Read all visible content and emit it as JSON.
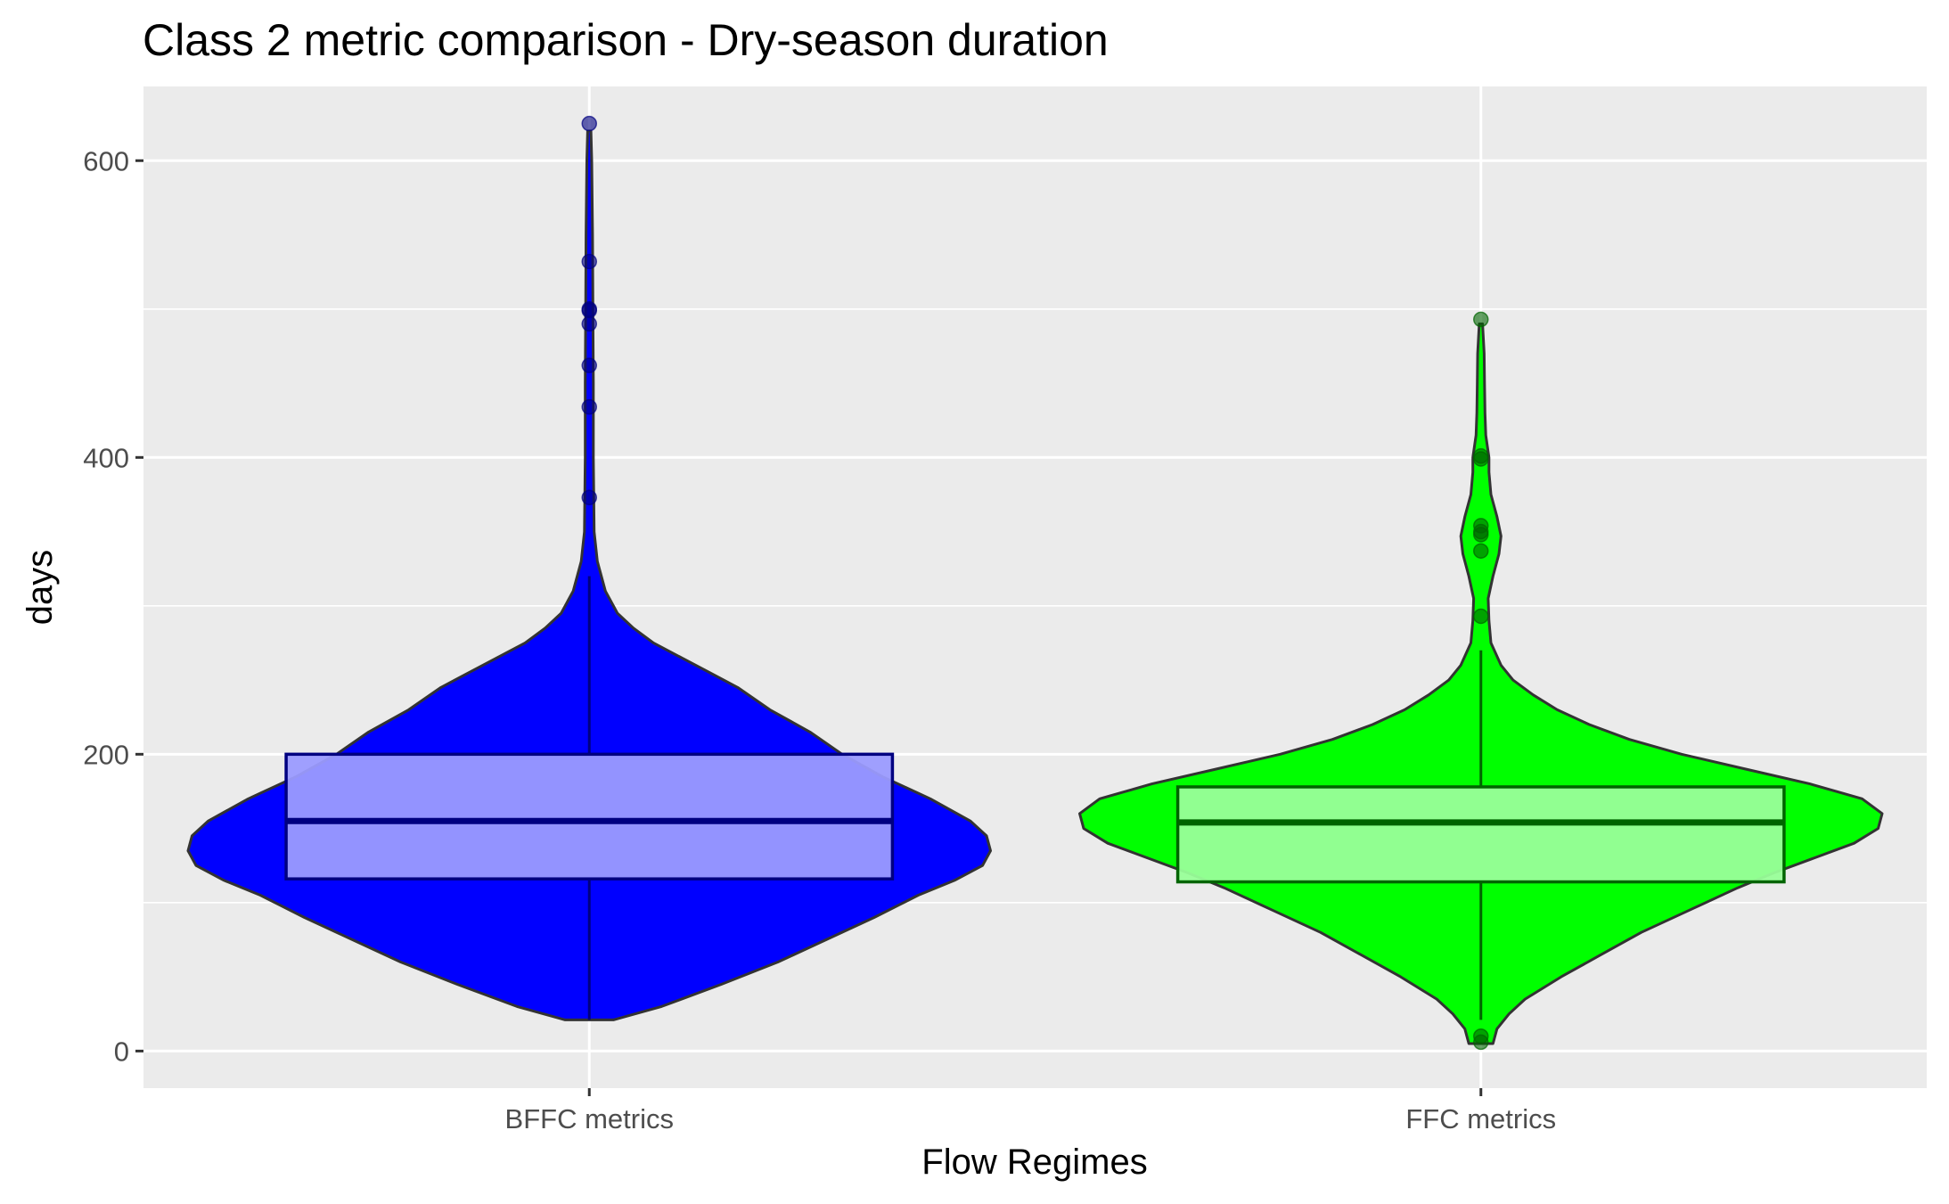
{
  "chart_data": {
    "type": "violin",
    "title": "Class 2 metric comparison - Dry-season duration",
    "xlabel": "Flow Regimes",
    "ylabel": "days",
    "categories": [
      "BFFC metrics",
      "FFC metrics"
    ],
    "ylim": [
      -25,
      650
    ],
    "yticks": [
      0,
      200,
      400,
      600
    ],
    "grid": true,
    "legend": "none",
    "series": [
      {
        "category": "BFFC metrics",
        "fill": "#0000ff",
        "box_fill": "#9b9bff",
        "box_edge": "#000080",
        "box": {
          "q1": 116,
          "median": 155,
          "q3": 200,
          "whisker_low": 21,
          "whisker_high": 320
        },
        "violin_range": [
          21,
          620
        ],
        "violin_density": [
          [
            21,
            0.06
          ],
          [
            30,
            0.18
          ],
          [
            45,
            0.33
          ],
          [
            60,
            0.47
          ],
          [
            75,
            0.59
          ],
          [
            90,
            0.71
          ],
          [
            105,
            0.82
          ],
          [
            115,
            0.91
          ],
          [
            125,
            0.98
          ],
          [
            135,
            1.0
          ],
          [
            145,
            0.99
          ],
          [
            155,
            0.95
          ],
          [
            170,
            0.85
          ],
          [
            185,
            0.73
          ],
          [
            200,
            0.63
          ],
          [
            215,
            0.55
          ],
          [
            230,
            0.45
          ],
          [
            245,
            0.37
          ],
          [
            255,
            0.3
          ],
          [
            265,
            0.23
          ],
          [
            275,
            0.16
          ],
          [
            285,
            0.11
          ],
          [
            295,
            0.07
          ],
          [
            310,
            0.04
          ],
          [
            330,
            0.02
          ],
          [
            350,
            0.012
          ],
          [
            400,
            0.01
          ],
          [
            450,
            0.01
          ],
          [
            500,
            0.009
          ],
          [
            550,
            0.008
          ],
          [
            600,
            0.006
          ],
          [
            620,
            0.004
          ]
        ],
        "outliers": [
          625,
          532,
          500,
          499,
          490,
          462,
          434,
          373
        ]
      },
      {
        "category": "FFC metrics",
        "fill": "#00ff00",
        "box_fill": "#99ff99",
        "box_edge": "#006400",
        "box": {
          "q1": 114,
          "median": 154,
          "q3": 178,
          "whisker_low": 21,
          "whisker_high": 270
        },
        "violin_range": [
          5,
          490
        ],
        "violin_density": [
          [
            5,
            0.03
          ],
          [
            15,
            0.04
          ],
          [
            25,
            0.07
          ],
          [
            35,
            0.11
          ],
          [
            50,
            0.2
          ],
          [
            65,
            0.3
          ],
          [
            80,
            0.4
          ],
          [
            95,
            0.52
          ],
          [
            110,
            0.64
          ],
          [
            120,
            0.73
          ],
          [
            130,
            0.83
          ],
          [
            140,
            0.93
          ],
          [
            150,
            0.99
          ],
          [
            160,
            1.0
          ],
          [
            170,
            0.95
          ],
          [
            180,
            0.82
          ],
          [
            190,
            0.66
          ],
          [
            200,
            0.5
          ],
          [
            210,
            0.37
          ],
          [
            220,
            0.27
          ],
          [
            230,
            0.19
          ],
          [
            240,
            0.13
          ],
          [
            250,
            0.08
          ],
          [
            260,
            0.05
          ],
          [
            275,
            0.025
          ],
          [
            290,
            0.02
          ],
          [
            305,
            0.018
          ],
          [
            320,
            0.03
          ],
          [
            335,
            0.045
          ],
          [
            347,
            0.05
          ],
          [
            360,
            0.04
          ],
          [
            375,
            0.025
          ],
          [
            390,
            0.02
          ],
          [
            400,
            0.02
          ],
          [
            415,
            0.012
          ],
          [
            430,
            0.01
          ],
          [
            450,
            0.009
          ],
          [
            470,
            0.008
          ],
          [
            490,
            0.004
          ]
        ],
        "outliers": [
          493,
          401,
          399,
          354,
          350,
          348,
          337,
          293,
          10,
          6
        ]
      }
    ]
  }
}
